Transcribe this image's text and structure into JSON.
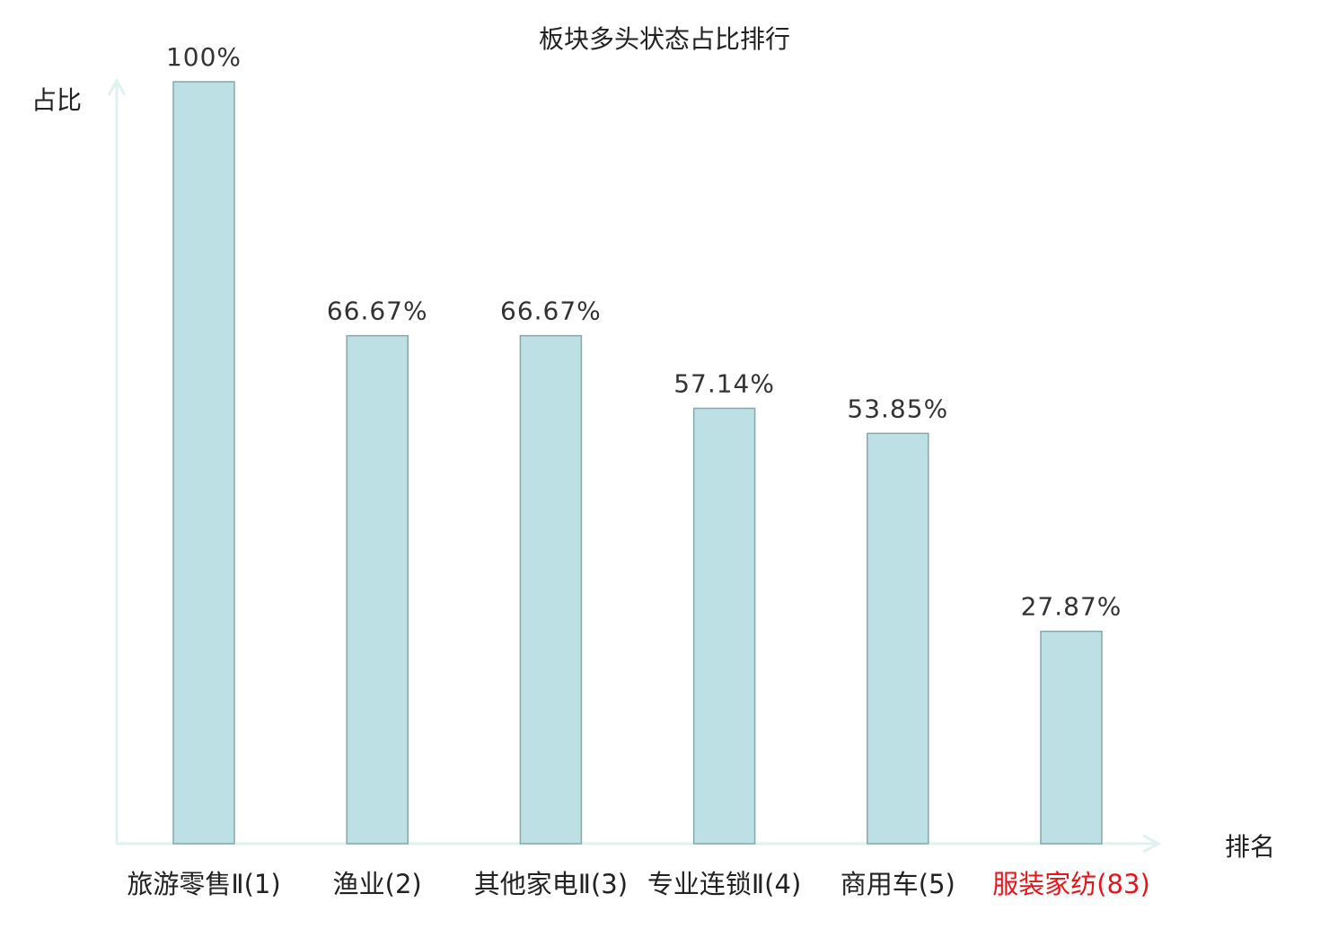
{
  "chart_data": {
    "type": "bar",
    "title": "板块多头状态占比排行",
    "xlabel": "排名",
    "ylabel": "占比",
    "categories": [
      "旅游零售Ⅱ(1)",
      "渔业(2)",
      "其他家电Ⅱ(3)",
      "专业连锁Ⅱ(4)",
      "商用车(5)",
      "服装家纺(83)"
    ],
    "values": [
      100,
      66.67,
      66.67,
      57.14,
      53.85,
      27.87
    ],
    "data_labels": [
      "100%",
      "66.67%",
      "66.67%",
      "57.14%",
      "53.85%",
      "27.87%"
    ],
    "ylim": [
      0,
      100
    ],
    "grid": false,
    "highlighted_category_index": 5,
    "colors": {
      "bar_fill": "#bce0e3",
      "bar_stroke": "#86a8aa",
      "axis": "#dff2ef",
      "highlight_label": "#e8141a",
      "label": "#222222",
      "data_label": "#333333"
    }
  }
}
